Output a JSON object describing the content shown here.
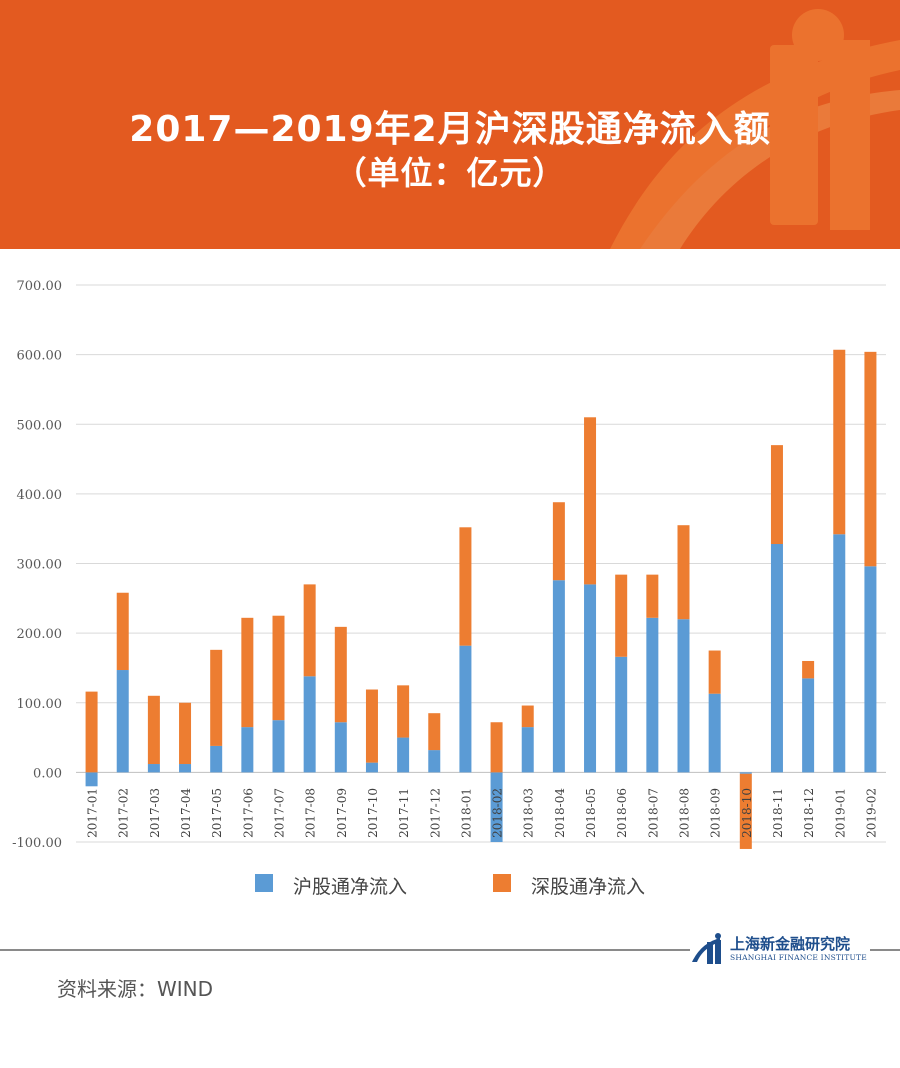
{
  "header": {
    "title_line1": "2017—2019年2月沪深股通净流入额",
    "title_line2": "（单位：亿元）",
    "banner_color": "#e35a20",
    "accent_color": "#f07d2a"
  },
  "chart_data": {
    "type": "bar",
    "stacked": true,
    "categories": [
      "2017-01",
      "2017-02",
      "2017-03",
      "2017-04",
      "2017-05",
      "2017-06",
      "2017-07",
      "2017-08",
      "2017-09",
      "2017-10",
      "2017-11",
      "2017-12",
      "2018-01",
      "2018-02",
      "2018-03",
      "2018-04",
      "2018-05",
      "2018-06",
      "2018-07",
      "2018-08",
      "2018-09",
      "2018-10",
      "2018-11",
      "2018-12",
      "2019-01",
      "2019-02"
    ],
    "series": [
      {
        "name": "沪股通净流入",
        "color": "#5b9bd5",
        "values": [
          -20,
          147,
          12,
          12,
          38,
          65,
          75,
          138,
          72,
          14,
          50,
          32,
          182,
          -100,
          65,
          276,
          270,
          166,
          222,
          220,
          113,
          -2,
          328,
          135,
          342,
          296
        ]
      },
      {
        "name": "深股通净流入",
        "color": "#ed7d31",
        "values": [
          116,
          111,
          98,
          88,
          138,
          157,
          150,
          132,
          137,
          105,
          75,
          53,
          170,
          72,
          31,
          112,
          240,
          118,
          62,
          135,
          62,
          -108,
          142,
          25,
          265,
          308
        ]
      }
    ],
    "ylim": [
      -100,
      700
    ],
    "yticks": [
      "-100.00",
      "0.00",
      "100.00",
      "200.00",
      "300.00",
      "400.00",
      "500.00",
      "600.00",
      "700.00"
    ],
    "grid": true,
    "legend_position": "bottom"
  },
  "footer": {
    "logo_name": "上海新金融研究院",
    "logo_subtitle": "SHANGHAI FINANCE INSTITUTE",
    "source": "资料来源：WIND"
  }
}
